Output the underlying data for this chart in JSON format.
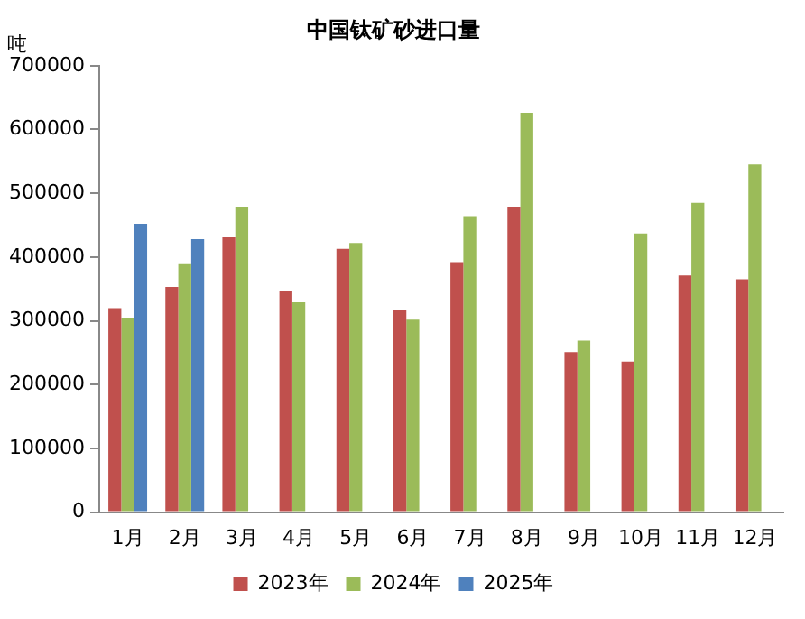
{
  "chart_data": {
    "type": "bar",
    "title": "中国钛矿砂进口量",
    "ylabel": "吨",
    "categories": [
      "1月",
      "2月",
      "3月",
      "4月",
      "5月",
      "6月",
      "7月",
      "8月",
      "9月",
      "10月",
      "11月",
      "12月"
    ],
    "series": [
      {
        "name": "2023年",
        "color": "#c0504d",
        "values": [
          320000,
          353000,
          431000,
          347000,
          413000,
          317000,
          392000,
          479000,
          251000,
          236000,
          371000,
          365000
        ]
      },
      {
        "name": "2024年",
        "color": "#9bbb59",
        "values": [
          305000,
          389000,
          479000,
          329000,
          422000,
          302000,
          464000,
          626000,
          269000,
          437000,
          485000,
          545000
        ]
      },
      {
        "name": "2025年",
        "color": "#4f81bd",
        "values": [
          452000,
          428000,
          null,
          null,
          null,
          null,
          null,
          null,
          null,
          null,
          null,
          null
        ]
      }
    ],
    "ylim": [
      0,
      700000
    ],
    "yticks": [
      0,
      100000,
      200000,
      300000,
      400000,
      500000,
      600000,
      700000
    ],
    "grid": false,
    "legend": "bottom"
  }
}
